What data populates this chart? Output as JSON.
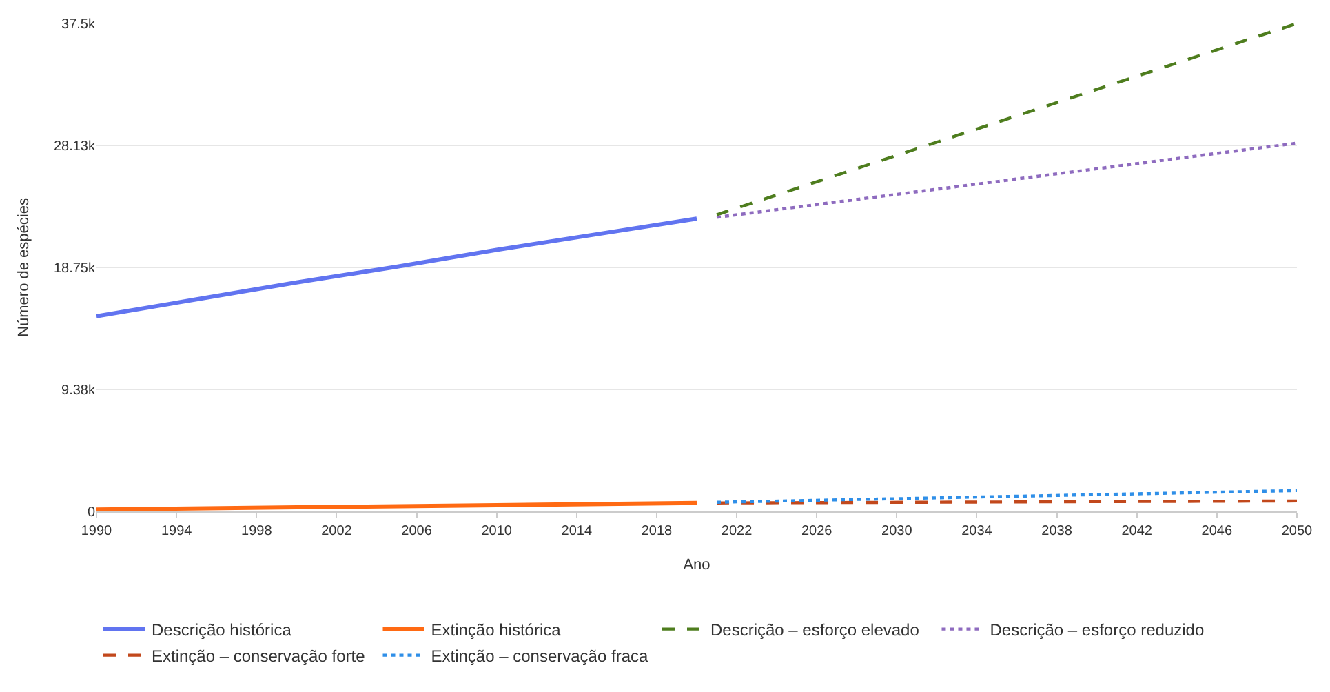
{
  "chart_data": {
    "type": "line",
    "xlabel": "Ano",
    "ylabel": "Número de espécies",
    "xlim": [
      1990,
      2050
    ],
    "xticks": [
      1990,
      1994,
      1998,
      2002,
      2006,
      2010,
      2014,
      2018,
      2022,
      2026,
      2030,
      2034,
      2038,
      2042,
      2046,
      2050
    ],
    "ylim": [
      0,
      37500
    ],
    "yticks": [
      0,
      {
        "value": 9380,
        "label": "9.38k"
      },
      {
        "value": 18750,
        "label": "18.75k"
      },
      {
        "value": 28130,
        "label": "28.13k"
      },
      {
        "value": 37500,
        "label": "37.5k"
      }
    ],
    "grid": "y",
    "legend": "bottom",
    "marker": "none",
    "series": [
      {
        "name": "Descrição histórica",
        "color": "#6174f0",
        "line_style": "solid",
        "x": [
          1990,
          1995,
          2000,
          2005,
          2010,
          2015,
          2020
        ],
        "values": [
          15000,
          16300,
          17600,
          18800,
          20100,
          21300,
          22500
        ]
      },
      {
        "name": "Extinção histórica",
        "color": "#ff6a13",
        "line_style": "solid",
        "x": [
          1990,
          2000,
          2010,
          2020
        ],
        "values": [
          150,
          320,
          480,
          650
        ]
      },
      {
        "name": "Descrição – esforço elevado",
        "color": "#4e7d1e",
        "line_style": "dashed",
        "x": [
          2021,
          2050
        ],
        "values": [
          22800,
          37500
        ]
      },
      {
        "name": "Descrição – esforço reduzido",
        "color": "#8e6bbf",
        "line_style": "dotted",
        "x": [
          2021,
          2050
        ],
        "values": [
          22600,
          28300
        ]
      },
      {
        "name": "Extinção – conservação forte",
        "color": "#c2481c",
        "line_style": "dashed",
        "x": [
          2021,
          2050
        ],
        "values": [
          650,
          800
        ]
      },
      {
        "name": "Extinção – conservação fraca",
        "color": "#2f8fe8",
        "line_style": "dotted",
        "x": [
          2021,
          2050
        ],
        "values": [
          700,
          1600
        ]
      }
    ]
  }
}
